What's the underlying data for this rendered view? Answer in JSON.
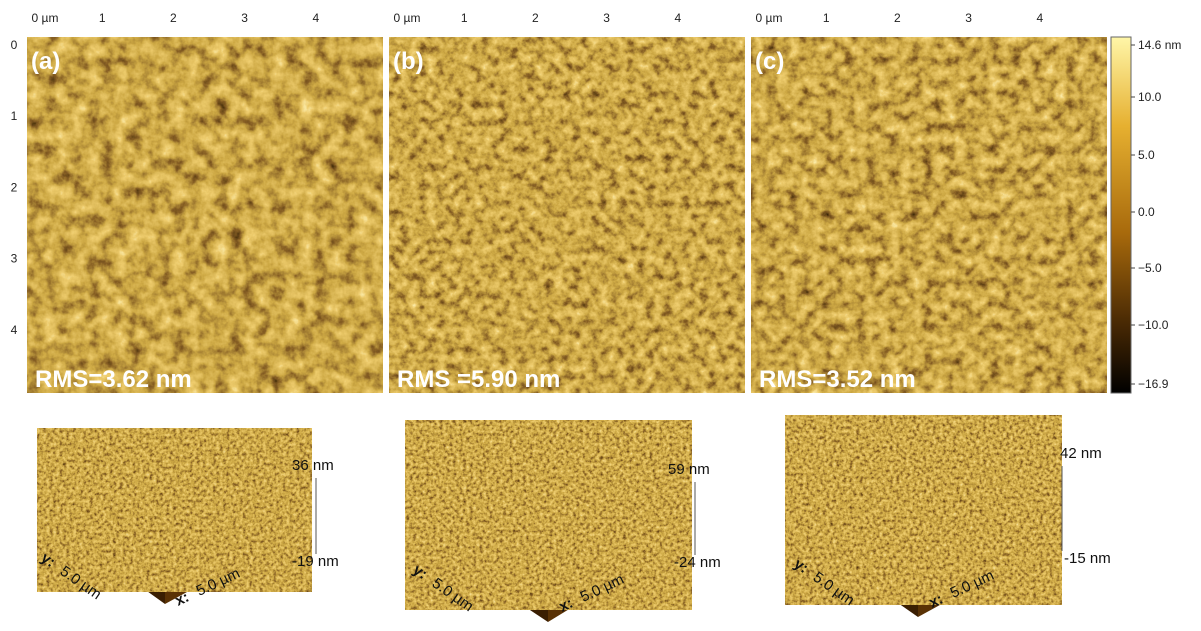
{
  "panels": [
    {
      "label": "(a)",
      "x_ticks": [
        "0 µm",
        "1",
        "2",
        "3",
        "4"
      ],
      "rms": "RMS=3.62 nm",
      "height_max": "36 nm",
      "height_min": "-19 nm",
      "y_axis": "y:",
      "y_size": "5.0 µm",
      "x_axis": "x:",
      "x_size": "5.0 µm"
    },
    {
      "label": "(b)",
      "x_ticks": [
        "0 µm",
        "1",
        "2",
        "3",
        "4"
      ],
      "rms": "RMS =5.90 nm",
      "height_max": "59 nm",
      "height_min": "-24 nm",
      "y_axis": "y:",
      "y_size": "5.0 µm",
      "x_axis": "x:",
      "x_size": "5.0 µm"
    },
    {
      "label": "(c)",
      "x_ticks": [
        "0 µm",
        "1",
        "2",
        "3",
        "4"
      ],
      "rms": "RMS=3.52 nm",
      "height_max": "42 nm",
      "height_min": "-15 nm",
      "y_axis": "y:",
      "y_size": "5.0 µm",
      "x_axis": "x:",
      "x_size": "5.0 µm"
    }
  ],
  "y_ticks": [
    "0",
    "1",
    "2",
    "3",
    "4"
  ],
  "colorbar": {
    "ticks": [
      "14.6 nm",
      "10.0",
      "5.0",
      "0.0",
      "−5.0",
      "−10.0",
      "−16.9"
    ]
  }
}
